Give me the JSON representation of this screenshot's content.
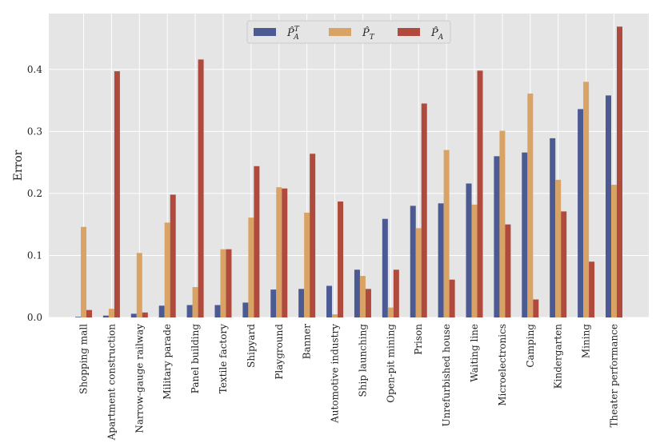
{
  "chart_data": {
    "type": "bar",
    "title": "",
    "xlabel": "",
    "ylabel": "Error",
    "ylim": [
      0,
      0.49
    ],
    "yticks": [
      0.0,
      0.1,
      0.2,
      0.3,
      0.4
    ],
    "ytick_labels": [
      "0.0",
      "0.1",
      "0.2",
      "0.3",
      "0.4"
    ],
    "grid": true,
    "legend_position": "top-center",
    "categories": [
      "Shopping mall",
      "Apartment construction",
      "Narrow-gauge railway",
      "Military parade",
      "Panel building",
      "Textile factory",
      "Shipyard",
      "Playground",
      "Banner",
      "Automotive industry",
      "Ship launching",
      "Open-pit mining",
      "Prison",
      "Unrefurbished house",
      "Waiting line",
      "Microelectronics",
      "Camping",
      "Kindergarten",
      "Mining",
      "Theater performance"
    ],
    "series": [
      {
        "name": "P̂_A^T",
        "legend_main": "P̂",
        "legend_sub": "A",
        "legend_sup": "T",
        "color": "#4c5a93",
        "values": [
          0.001,
          0.003,
          0.006,
          0.019,
          0.02,
          0.02,
          0.024,
          0.045,
          0.046,
          0.051,
          0.077,
          0.159,
          0.18,
          0.184,
          0.216,
          0.26,
          0.266,
          0.289,
          0.336,
          0.358
        ]
      },
      {
        "name": "P̂_T",
        "legend_main": "P̂",
        "legend_sub": "T",
        "legend_sup": "",
        "color": "#d9a365",
        "values": [
          0.146,
          0.014,
          0.104,
          0.153,
          0.049,
          0.11,
          0.161,
          0.21,
          0.169,
          0.005,
          0.067,
          0.016,
          0.144,
          0.27,
          0.182,
          0.301,
          0.361,
          0.222,
          0.38,
          0.214
        ]
      },
      {
        "name": "P̂_A",
        "legend_main": "P̂",
        "legend_sub": "A",
        "legend_sup": "",
        "color": "#b04a3c",
        "values": [
          0.012,
          0.397,
          0.008,
          0.198,
          0.416,
          0.11,
          0.244,
          0.208,
          0.264,
          0.187,
          0.046,
          0.077,
          0.345,
          0.061,
          0.398,
          0.15,
          0.029,
          0.171,
          0.09,
          0.469
        ]
      }
    ]
  }
}
